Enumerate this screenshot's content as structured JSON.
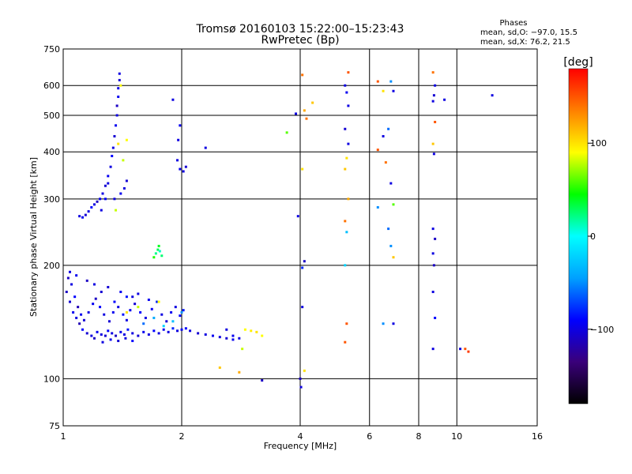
{
  "header": {
    "title_line1": "Tromsø 20160103 15:22:00–15:23:43",
    "title_line2": "RwPretec (Bp)"
  },
  "stats": {
    "label": "Phases",
    "line_o": "mean, sd,O: −97.0, 15.5",
    "line_x": "mean, sd,X:  76.2, 21.5"
  },
  "colorbar": {
    "unit_label": "[deg]",
    "min": -180,
    "max": 180,
    "ticks": [
      {
        "value": 100,
        "label": "100"
      },
      {
        "value": 0,
        "label": "0"
      },
      {
        "value": -100,
        "label": "−100"
      }
    ],
    "stops": [
      "#000000",
      "#3a007a",
      "#0000ff",
      "#00a0ff",
      "#00ffff",
      "#00ff00",
      "#ffff00",
      "#ff8000",
      "#ff0000"
    ]
  },
  "chart_data": {
    "type": "scatter",
    "title": "Tromsø 20160103 15:22:00–15:23:43",
    "subtitle": "RwPretec (Bp)",
    "xlabel": "Frequency [MHz]",
    "ylabel": "Stationary phase Virtual Height [km]",
    "x_scale": "log",
    "y_scale": "log",
    "xlim": [
      1,
      16
    ],
    "ylim": [
      75,
      750
    ],
    "x_ticks": [
      {
        "value": 1,
        "label": "1"
      },
      {
        "value": 2,
        "label": "2"
      },
      {
        "value": 4,
        "label": "4"
      },
      {
        "value": 6,
        "label": "6"
      },
      {
        "value": 8,
        "label": "8"
      },
      {
        "value": 10,
        "label": "10"
      },
      {
        "value": 16,
        "label": "16"
      }
    ],
    "y_ticks": [
      {
        "value": 75,
        "label": "75"
      },
      {
        "value": 100,
        "label": "100"
      },
      {
        "value": 200,
        "label": "200"
      },
      {
        "value": 300,
        "label": "300"
      },
      {
        "value": 400,
        "label": "400"
      },
      {
        "value": 500,
        "label": "500"
      },
      {
        "value": 600,
        "label": "600"
      },
      {
        "value": 750,
        "label": "750"
      }
    ],
    "grid": true,
    "color_value": "phase [deg]",
    "points": [
      [
        1.02,
        170,
        -110
      ],
      [
        1.04,
        160,
        -105
      ],
      [
        1.06,
        150,
        -95
      ],
      [
        1.08,
        145,
        -100
      ],
      [
        1.1,
        140,
        -115
      ],
      [
        1.12,
        135,
        -90
      ],
      [
        1.15,
        132,
        -105
      ],
      [
        1.18,
        130,
        -100
      ],
      [
        1.2,
        128,
        -110
      ],
      [
        1.22,
        133,
        -95
      ],
      [
        1.25,
        131,
        -100
      ],
      [
        1.28,
        130,
        -105
      ],
      [
        1.3,
        134,
        -90
      ],
      [
        1.33,
        132,
        -100
      ],
      [
        1.36,
        130,
        -110
      ],
      [
        1.4,
        133,
        -95
      ],
      [
        1.43,
        131,
        -100
      ],
      [
        1.46,
        135,
        -85
      ],
      [
        1.5,
        132,
        -100
      ],
      [
        1.55,
        130,
        -105
      ],
      [
        1.6,
        133,
        -95
      ],
      [
        1.65,
        131,
        -100
      ],
      [
        1.7,
        134,
        -90
      ],
      [
        1.75,
        132,
        -100
      ],
      [
        1.8,
        135,
        -95
      ],
      [
        1.85,
        133,
        -100
      ],
      [
        1.9,
        136,
        -80
      ],
      [
        1.95,
        134,
        -100
      ],
      [
        2.0,
        135,
        -95
      ],
      [
        2.05,
        136,
        -90
      ],
      [
        2.1,
        134,
        -100
      ],
      [
        2.2,
        132,
        -105
      ],
      [
        2.3,
        131,
        -100
      ],
      [
        2.4,
        130,
        -95
      ],
      [
        2.5,
        129,
        -100
      ],
      [
        2.6,
        128,
        -105
      ],
      [
        2.7,
        127,
        -95
      ],
      [
        1.03,
        185,
        -110
      ],
      [
        1.05,
        178,
        -100
      ],
      [
        1.07,
        165,
        -90
      ],
      [
        1.09,
        155,
        -115
      ],
      [
        1.11,
        148,
        -95
      ],
      [
        1.13,
        143,
        -105
      ],
      [
        1.16,
        150,
        -100
      ],
      [
        1.19,
        158,
        -95
      ],
      [
        1.21,
        163,
        -110
      ],
      [
        1.24,
        155,
        -90
      ],
      [
        1.27,
        148,
        -100
      ],
      [
        1.31,
        142,
        -105
      ],
      [
        1.34,
        150,
        -95
      ],
      [
        1.38,
        155,
        -100
      ],
      [
        1.42,
        148,
        -85
      ],
      [
        1.45,
        143,
        -100
      ],
      [
        1.48,
        152,
        -95
      ],
      [
        1.52,
        158,
        -105
      ],
      [
        1.57,
        150,
        -90
      ],
      [
        1.62,
        145,
        -100
      ],
      [
        1.68,
        153,
        -95
      ],
      [
        1.73,
        160,
        -80
      ],
      [
        1.78,
        148,
        -100
      ],
      [
        1.83,
        142,
        -105
      ],
      [
        1.88,
        150,
        -95
      ],
      [
        1.93,
        155,
        -100
      ],
      [
        1.98,
        147,
        -90
      ],
      [
        2.02,
        152,
        -85
      ],
      [
        1.5,
        165,
        -100
      ],
      [
        1.4,
        170,
        -95
      ],
      [
        1.3,
        175,
        -105
      ],
      [
        1.2,
        178,
        -100
      ],
      [
        1.15,
        182,
        -110
      ],
      [
        1.08,
        188,
        -95
      ],
      [
        1.04,
        192,
        -100
      ],
      [
        1.35,
        160,
        -90
      ],
      [
        1.45,
        165,
        -85
      ],
      [
        1.55,
        168,
        -100
      ],
      [
        1.25,
        170,
        -105
      ],
      [
        1.65,
        162,
        -95
      ],
      [
        1.6,
        140,
        -60
      ],
      [
        1.7,
        145,
        -40
      ],
      [
        1.8,
        138,
        -20
      ],
      [
        1.9,
        142,
        -30
      ],
      [
        2.0,
        150,
        -50
      ],
      [
        1.55,
        155,
        80
      ],
      [
        1.75,
        160,
        90
      ],
      [
        1.45,
        150,
        100
      ],
      [
        1.26,
        125,
        -100
      ],
      [
        1.32,
        127,
        -95
      ],
      [
        1.38,
        126,
        -105
      ],
      [
        1.44,
        128,
        -100
      ],
      [
        1.5,
        126,
        -90
      ],
      [
        1.1,
        270,
        -100
      ],
      [
        1.12,
        268,
        -95
      ],
      [
        1.14,
        272,
        -105
      ],
      [
        1.16,
        278,
        -100
      ],
      [
        1.18,
        285,
        -90
      ],
      [
        1.2,
        290,
        -100
      ],
      [
        1.22,
        295,
        -110
      ],
      [
        1.24,
        300,
        -95
      ],
      [
        1.26,
        310,
        -100
      ],
      [
        1.28,
        325,
        -105
      ],
      [
        1.3,
        345,
        -95
      ],
      [
        1.32,
        365,
        -100
      ],
      [
        1.33,
        390,
        -90
      ],
      [
        1.34,
        410,
        -100
      ],
      [
        1.35,
        440,
        -105
      ],
      [
        1.36,
        470,
        -95
      ],
      [
        1.37,
        500,
        -100
      ],
      [
        1.37,
        530,
        -110
      ],
      [
        1.38,
        560,
        -95
      ],
      [
        1.38,
        590,
        -100
      ],
      [
        1.39,
        620,
        -105
      ],
      [
        1.39,
        645,
        -100
      ],
      [
        1.35,
        300,
        -100
      ],
      [
        1.4,
        310,
        -95
      ],
      [
        1.43,
        320,
        -100
      ],
      [
        1.45,
        335,
        -105
      ],
      [
        1.42,
        380,
        80
      ],
      [
        1.45,
        430,
        90
      ],
      [
        1.38,
        420,
        100
      ],
      [
        1.3,
        330,
        -100
      ],
      [
        1.28,
        300,
        -90
      ],
      [
        1.25,
        280,
        -100
      ],
      [
        1.36,
        280,
        80
      ],
      [
        1.4,
        600,
        90
      ],
      [
        1.72,
        215,
        20
      ],
      [
        1.74,
        220,
        30
      ],
      [
        1.76,
        218,
        10
      ],
      [
        1.75,
        225,
        40
      ],
      [
        1.78,
        212,
        25
      ],
      [
        1.7,
        210,
        50
      ],
      [
        1.95,
        380,
        -100
      ],
      [
        1.98,
        360,
        -95
      ],
      [
        2.02,
        355,
        -100
      ],
      [
        2.05,
        365,
        -105
      ],
      [
        1.96,
        430,
        -100
      ],
      [
        1.98,
        470,
        -95
      ],
      [
        1.9,
        550,
        -100
      ],
      [
        2.3,
        410,
        -100
      ],
      [
        2.6,
        135,
        -100
      ],
      [
        2.7,
        130,
        -95
      ],
      [
        2.8,
        128,
        -100
      ],
      [
        2.85,
        120,
        80
      ],
      [
        2.9,
        135,
        90
      ],
      [
        3.0,
        134,
        95
      ],
      [
        3.1,
        133,
        100
      ],
      [
        3.2,
        130,
        90
      ],
      [
        2.5,
        107,
        110
      ],
      [
        2.8,
        104,
        120
      ],
      [
        3.2,
        99,
        -110
      ],
      [
        3.95,
        270,
        -100
      ],
      [
        4.05,
        197,
        -80
      ],
      [
        4.1,
        205,
        -110
      ],
      [
        4.05,
        155,
        -100
      ],
      [
        4.0,
        100,
        -110
      ],
      [
        4.02,
        95,
        -100
      ],
      [
        4.1,
        105,
        100
      ],
      [
        4.05,
        360,
        100
      ],
      [
        4.1,
        515,
        120
      ],
      [
        4.15,
        490,
        140
      ],
      [
        4.3,
        540,
        110
      ],
      [
        4.05,
        640,
        140
      ],
      [
        3.9,
        505,
        -100
      ],
      [
        3.7,
        450,
        60
      ],
      [
        5.2,
        600,
        -100
      ],
      [
        5.25,
        575,
        -95
      ],
      [
        5.3,
        530,
        -100
      ],
      [
        5.2,
        460,
        -105
      ],
      [
        5.3,
        420,
        -100
      ],
      [
        5.25,
        385,
        100
      ],
      [
        5.2,
        360,
        110
      ],
      [
        5.3,
        300,
        120
      ],
      [
        5.2,
        262,
        140
      ],
      [
        5.25,
        245,
        -30
      ],
      [
        5.2,
        200,
        -20
      ],
      [
        5.25,
        140,
        150
      ],
      [
        5.2,
        125,
        150
      ],
      [
        5.3,
        650,
        150
      ],
      [
        6.3,
        615,
        150
      ],
      [
        6.5,
        580,
        100
      ],
      [
        6.8,
        615,
        -50
      ],
      [
        6.9,
        580,
        -100
      ],
      [
        6.7,
        460,
        -60
      ],
      [
        6.5,
        440,
        -100
      ],
      [
        6.3,
        405,
        150
      ],
      [
        6.6,
        375,
        140
      ],
      [
        6.8,
        330,
        -100
      ],
      [
        6.9,
        290,
        60
      ],
      [
        6.7,
        250,
        -60
      ],
      [
        6.8,
        225,
        -50
      ],
      [
        6.9,
        210,
        110
      ],
      [
        6.5,
        140,
        -50
      ],
      [
        6.9,
        140,
        -100
      ],
      [
        6.3,
        285,
        -50
      ],
      [
        8.7,
        650,
        140
      ],
      [
        8.8,
        600,
        -100
      ],
      [
        8.75,
        565,
        -105
      ],
      [
        8.7,
        545,
        -100
      ],
      [
        8.8,
        480,
        150
      ],
      [
        8.7,
        420,
        110
      ],
      [
        8.75,
        395,
        -100
      ],
      [
        8.7,
        250,
        -100
      ],
      [
        8.8,
        235,
        -110
      ],
      [
        8.7,
        215,
        -100
      ],
      [
        8.75,
        200,
        -110
      ],
      [
        8.7,
        170,
        -100
      ],
      [
        8.8,
        145,
        -90
      ],
      [
        8.7,
        120,
        -100
      ],
      [
        9.3,
        550,
        -100
      ],
      [
        12.3,
        565,
        -100
      ],
      [
        10.2,
        120,
        -100
      ],
      [
        10.5,
        120,
        150
      ],
      [
        10.7,
        118,
        160
      ]
    ]
  }
}
